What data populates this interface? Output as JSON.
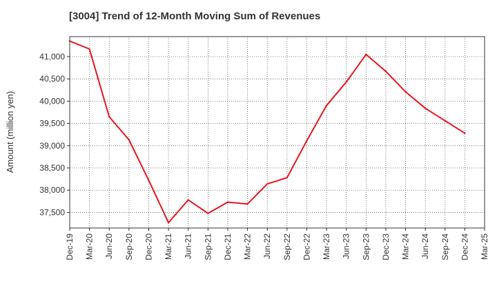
{
  "chart_data": {
    "type": "line",
    "title": "[3004]  Trend of 12-Month Moving Sum of Revenues",
    "xlabel": "",
    "ylabel": "Amount (million yen)",
    "categories": [
      "Dec-19",
      "Mar-20",
      "Jun-20",
      "Sep-20",
      "Dec-20",
      "Mar-21",
      "Jun-21",
      "Sep-21",
      "Dec-21",
      "Mar-22",
      "Jun-22",
      "Sep-22",
      "Dec-22",
      "Mar-23",
      "Jun-23",
      "Sep-23",
      "Dec-23",
      "Mar-24",
      "Jun-24",
      "Sep-24",
      "Dec-24",
      "Mar-25"
    ],
    "series": [
      {
        "values": [
          41350,
          41170,
          39650,
          39130,
          38220,
          37270,
          37780,
          37480,
          37730,
          37690,
          38140,
          38280,
          39110,
          39900,
          40430,
          41050,
          40670,
          40210,
          39840,
          39560,
          39280,
          null
        ],
        "color": "#e8141c"
      }
    ],
    "ylim": [
      37150,
      41450
    ],
    "yticks": [
      37500,
      38000,
      38500,
      39000,
      39500,
      40000,
      40500,
      41000
    ],
    "ytick_labels": [
      "37,500",
      "38,000",
      "38,500",
      "39,000",
      "39,500",
      "40,000",
      "40,500",
      "41,000"
    ],
    "grid": true,
    "legend": "none"
  }
}
